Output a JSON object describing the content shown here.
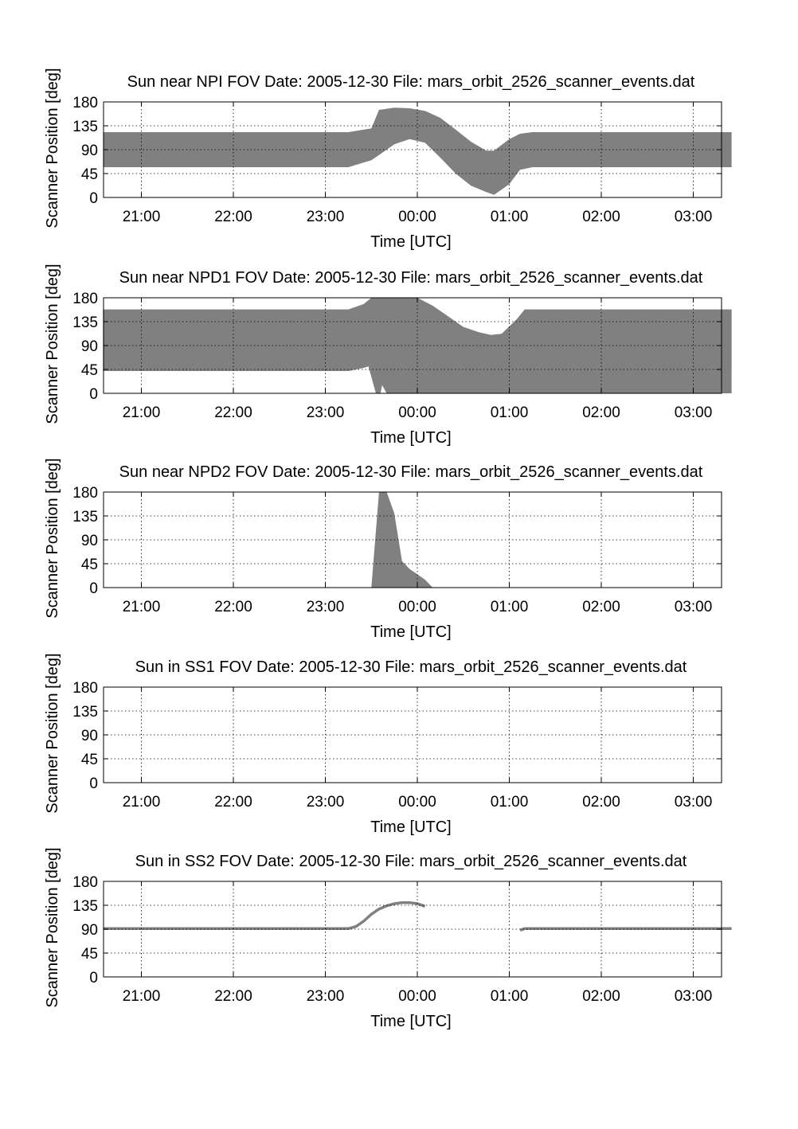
{
  "chart_data": [
    {
      "type": "area",
      "title_parts": [
        "Sun near NPI FOV",
        "Date: 2005-12-30",
        "File: mars_orbit_2526_scanner_events.dat"
      ],
      "xlabel": "Time [UTC]",
      "ylabel": "Scanner Position [deg]",
      "xticks": [
        "21:00",
        "22:00",
        "23:00",
        "00:00",
        "01:00",
        "02:00",
        "03:00"
      ],
      "yticks": [
        "0",
        "45",
        "90",
        "135",
        "180"
      ],
      "ylim": [
        0,
        180
      ],
      "grid": true,
      "color": "#808080",
      "band": {
        "x": [
          "20:35",
          "23:15",
          "23:30",
          "23:35",
          "23:45",
          "23:55",
          "00:05",
          "00:15",
          "00:25",
          "00:35",
          "00:45",
          "00:50",
          "01:00",
          "01:07",
          "01:15",
          "03:25"
        ],
        "upper": [
          123,
          123,
          130,
          165,
          169,
          168,
          163,
          150,
          128,
          105,
          88,
          88,
          110,
          120,
          123,
          123
        ],
        "lower": [
          57,
          57,
          70,
          80,
          100,
          110,
          103,
          75,
          45,
          22,
          10,
          5,
          25,
          52,
          57,
          57
        ]
      }
    },
    {
      "type": "area",
      "title_parts": [
        "Sun near NPD1 FOV",
        "Date: 2005-12-30",
        "File: mars_orbit_2526_scanner_events.dat"
      ],
      "xlabel": "Time [UTC]",
      "ylabel": "Scanner Position [deg]",
      "xticks": [
        "21:00",
        "22:00",
        "23:00",
        "00:00",
        "01:00",
        "02:00",
        "03:00"
      ],
      "yticks": [
        "0",
        "45",
        "90",
        "135",
        "180"
      ],
      "ylim": [
        0,
        180
      ],
      "grid": true,
      "color": "#808080",
      "bands": [
        {
          "x": [
            "20:35",
            "23:15",
            "23:25",
            "23:30",
            "23:40",
            "23:50",
            "00:00",
            "00:10",
            "00:20",
            "00:30",
            "00:40",
            "00:48",
            "00:55",
            "01:05",
            "01:10",
            "03:25"
          ],
          "upper": [
            158,
            158,
            168,
            180,
            180,
            180,
            180,
            165,
            145,
            125,
            115,
            110,
            112,
            140,
            158,
            158
          ],
          "lower": [
            42,
            42,
            48,
            52,
            0,
            0,
            0,
            0,
            0,
            0,
            0,
            0,
            0,
            0,
            0,
            0
          ]
        },
        {
          "x": [
            "20:35",
            "23:15",
            "23:25",
            "23:28",
            "23:33",
            "23:36",
            "23:40",
            "23:50",
            "00:00",
            "00:10",
            "00:20",
            "00:30",
            "00:40",
            "00:48",
            "00:55",
            "01:05",
            "01:10",
            "03:25"
          ],
          "upper": [
            158,
            158,
            168,
            175,
            180,
            180,
            180,
            180,
            180,
            165,
            145,
            125,
            115,
            110,
            112,
            140,
            158,
            158
          ],
          "lower": [
            42,
            42,
            48,
            52,
            0,
            0,
            60,
            82,
            88,
            82,
            70,
            45,
            25,
            7,
            15,
            35,
            42,
            42
          ]
        }
      ]
    },
    {
      "type": "area",
      "title_parts": [
        "Sun near NPD2 FOV",
        "Date: 2005-12-30",
        "File: mars_orbit_2526_scanner_events.dat"
      ],
      "xlabel": "Time [UTC]",
      "ylabel": "Scanner Position [deg]",
      "xticks": [
        "21:00",
        "22:00",
        "23:00",
        "00:00",
        "01:00",
        "02:00",
        "03:00"
      ],
      "yticks": [
        "0",
        "45",
        "90",
        "135",
        "180"
      ],
      "ylim": [
        0,
        180
      ],
      "grid": true,
      "color": "#808080",
      "band": {
        "x": [
          "23:30",
          "23:35",
          "23:40",
          "23:45",
          "23:50",
          "23:55",
          "00:00",
          "00:05",
          "00:10"
        ],
        "upper": [
          0,
          180,
          180,
          140,
          50,
          35,
          25,
          15,
          0
        ],
        "lower": [
          0,
          0,
          0,
          0,
          0,
          0,
          0,
          0,
          0
        ]
      }
    },
    {
      "type": "area",
      "title_parts": [
        "Sun in SS1 FOV",
        "Date: 2005-12-30",
        "File: mars_orbit_2526_scanner_events.dat"
      ],
      "xlabel": "Time [UTC]",
      "ylabel": "Scanner Position [deg]",
      "xticks": [
        "21:00",
        "22:00",
        "23:00",
        "00:00",
        "01:00",
        "02:00",
        "03:00"
      ],
      "yticks": [
        "0",
        "45",
        "90",
        "135",
        "180"
      ],
      "ylim": [
        0,
        180
      ],
      "grid": true,
      "color": "#808080"
    },
    {
      "type": "line",
      "title_parts": [
        "Sun in SS2 FOV",
        "Date: 2005-12-30",
        "File: mars_orbit_2526_scanner_events.dat"
      ],
      "xlabel": "Time [UTC]",
      "ylabel": "Scanner Position [deg]",
      "xticks": [
        "21:00",
        "22:00",
        "23:00",
        "00:00",
        "01:00",
        "02:00",
        "03:00"
      ],
      "yticks": [
        "0",
        "45",
        "90",
        "135",
        "180"
      ],
      "ylim": [
        0,
        180
      ],
      "grid": true,
      "color": "#808080",
      "segments": [
        {
          "x": [
            "20:35",
            "23:15",
            "23:20",
            "23:25",
            "23:30",
            "23:35",
            "23:40",
            "23:45",
            "23:50",
            "23:55",
            "00:00",
            "00:05"
          ],
          "y": [
            91,
            91,
            95,
            105,
            118,
            128,
            134,
            138,
            140,
            140,
            138,
            133
          ]
        },
        {
          "x": [
            "01:07",
            "01:10",
            "03:25"
          ],
          "y": [
            88,
            91,
            91
          ]
        }
      ]
    }
  ]
}
